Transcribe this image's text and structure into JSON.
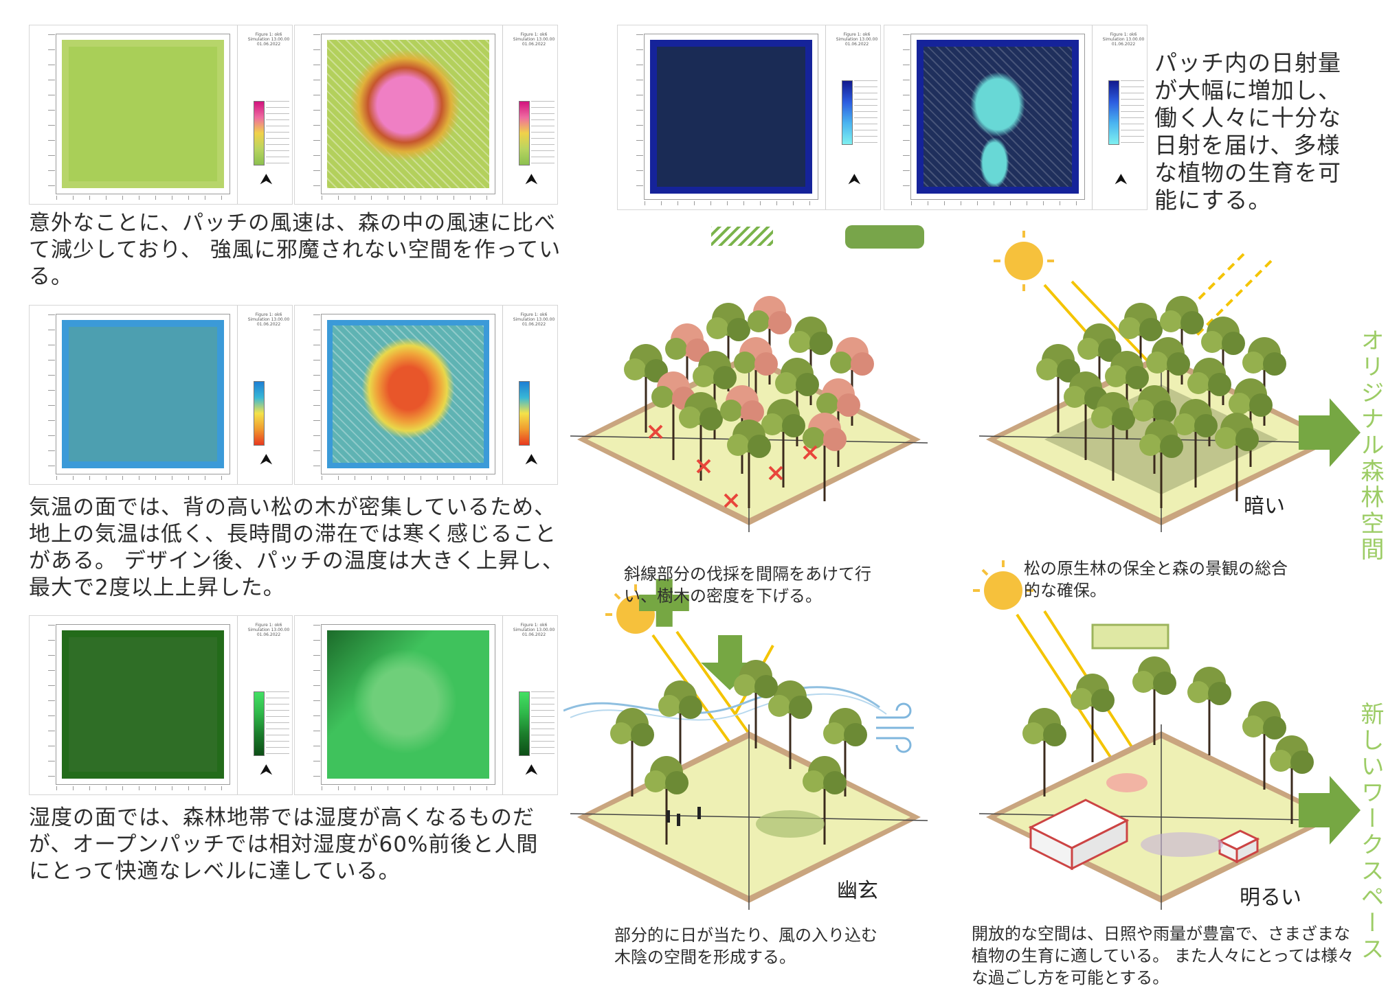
{
  "left_column": {
    "wind_text": "意外なことに、パッチの風速は、森の中の風速に比べて減少しており、 強風に邪魔されない空間を作っている。",
    "temp_text": "気温の面では、背の高い松の木が密集しているため、地上の気温は低く、長時間の滞在では寒く感じることがある。 デザイン後、パッチの温度は大きく上昇し、最大で2度以上上昇した。",
    "humidity_text": "湿度の面では、森林地帯では湿度が高くなるものだが、オープンパッチでは相対湿度が60%前後と人間にとって快適なレベルに達している。"
  },
  "radiation_text": "パッチ内の日射量が大幅に増加し、働く人々に十分な日射を届け、多様な植物の生育を可能にする。",
  "diagrams": {
    "original_label": "オリジナル森林空間",
    "new_label": "新しいワークスペース",
    "dark_label": "暗い",
    "subtle_label": "幽玄",
    "bright_label": "明るい",
    "caption_cutting": "斜線部分の伐採を間隔をあけて行い、樹木の密度を下げる。",
    "caption_preserve": "松の原生林の保全と森の景観の総合的な確保。",
    "caption_shade": "部分的に日が当たり、風の入り込む木陰の空間を形成する。",
    "caption_open": "開放的な空間は、日照や雨量が豊富で、さまざまな植物の生育に適している。 また人々にとっては様々な過ごし方を可能とする。"
  },
  "panels": [
    {
      "id": "wind-before",
      "title": "Figure 1: ok6 Simulation 13.00.00 01.06.2022",
      "legend": "Wind Speed"
    },
    {
      "id": "wind-after",
      "title": "Figure 1: ok6 Simulation 13.00.00 01.06.2022",
      "legend": "Wind Speed"
    },
    {
      "id": "rad-before",
      "title": "Figure 1: ok6 Simulation 13.00.00 01.06.2022",
      "legend": "Direct SW Radiation"
    },
    {
      "id": "rad-after",
      "title": "Figure 1: ok6 Simulation 13.00.00 01.06.2022",
      "legend": "Direct SW Radiation"
    },
    {
      "id": "temp-before",
      "title": "Figure 1: ok6 Simulation 13.00.00 01.06.2022",
      "legend": "Potential Air Temperature"
    },
    {
      "id": "temp-after",
      "title": "Figure 1: ok6 Simulation 13.00.00 01.06.2022",
      "legend": "Potential Air Temperature"
    },
    {
      "id": "hum-before",
      "title": "Figure 1: ok6 Simulation 13.00.00 01.06.2022",
      "legend": "Relative Humidity"
    },
    {
      "id": "hum-after",
      "title": "Figure 1: ok6 Simulation 13.00.00 01.06.2022",
      "legend": "Relative Humidity"
    }
  ],
  "colors": {
    "green_accent": "#76a743",
    "label_green": "#9ccc65",
    "sun": "#f6c13c",
    "sun_ray": "#f4c400",
    "ground": "#eef0b4",
    "border": "#b18c68"
  }
}
